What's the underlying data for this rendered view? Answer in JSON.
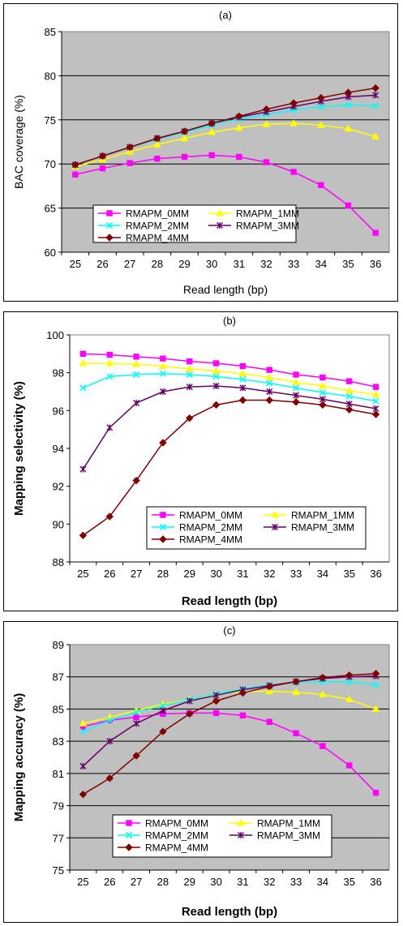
{
  "chart_data": [
    {
      "type": "line",
      "title": "(a)",
      "xlabel": "Read length (bp)",
      "ylabel": "BAC coverage (%)",
      "categories": [
        "25",
        "26",
        "27",
        "28",
        "29",
        "30",
        "31",
        "32",
        "33",
        "34",
        "35",
        "36"
      ],
      "ylim": [
        60,
        85
      ],
      "yticks": [
        "60",
        "65",
        "70",
        "75",
        "80",
        "85"
      ],
      "grid": true,
      "legend": "bottom-left",
      "series": [
        {
          "name": "RMAPM_0MM",
          "color": "#ff00ff",
          "marker": "square",
          "values": [
            68.8,
            69.5,
            70.1,
            70.6,
            70.8,
            71.0,
            70.8,
            70.2,
            69.1,
            67.6,
            65.3,
            62.2
          ]
        },
        {
          "name": "RMAPM_1MM",
          "color": "#ffff00",
          "marker": "triangle",
          "values": [
            69.7,
            70.5,
            71.4,
            72.2,
            72.9,
            73.6,
            74.1,
            74.5,
            74.6,
            74.4,
            74.0,
            73.1
          ]
        },
        {
          "name": "RMAPM_2MM",
          "color": "#00ffff",
          "marker": "x",
          "values": [
            69.9,
            70.9,
            71.9,
            72.8,
            73.6,
            74.4,
            75.1,
            75.6,
            76.1,
            76.5,
            76.7,
            76.6
          ]
        },
        {
          "name": "RMAPM_3MM",
          "color": "#660066",
          "marker": "star",
          "values": [
            69.9,
            70.9,
            71.9,
            72.9,
            73.7,
            74.6,
            75.3,
            75.9,
            76.5,
            77.1,
            77.6,
            77.8
          ]
        },
        {
          "name": "RMAPM_4MM",
          "color": "#800000",
          "marker": "diamond",
          "values": [
            69.9,
            70.9,
            71.9,
            72.9,
            73.7,
            74.6,
            75.4,
            76.2,
            76.9,
            77.5,
            78.1,
            78.6
          ]
        }
      ]
    },
    {
      "type": "line",
      "title": "(b)",
      "xlabel": "Read length (bp)",
      "ylabel": "Mapping selectivity (%)",
      "categories": [
        "25",
        "26",
        "27",
        "28",
        "29",
        "30",
        "31",
        "32",
        "33",
        "34",
        "35",
        "36"
      ],
      "ylim": [
        88,
        100
      ],
      "yticks": [
        "88",
        "90",
        "92",
        "94",
        "96",
        "98",
        "100"
      ],
      "grid": false,
      "legend": "bottom-right",
      "series": [
        {
          "name": "RMAPM_0MM",
          "color": "#ff00ff",
          "marker": "square",
          "values": [
            99.0,
            98.95,
            98.85,
            98.75,
            98.6,
            98.5,
            98.35,
            98.15,
            97.9,
            97.75,
            97.55,
            97.25
          ]
        },
        {
          "name": "RMAPM_1MM",
          "color": "#ffff00",
          "marker": "triangle",
          "values": [
            98.5,
            98.5,
            98.45,
            98.35,
            98.2,
            98.1,
            97.95,
            97.75,
            97.5,
            97.3,
            97.05,
            96.85
          ]
        },
        {
          "name": "RMAPM_2MM",
          "color": "#00ffff",
          "marker": "x",
          "values": [
            97.2,
            97.8,
            97.9,
            97.95,
            97.9,
            97.8,
            97.65,
            97.45,
            97.2,
            96.95,
            96.75,
            96.5
          ]
        },
        {
          "name": "RMAPM_3MM",
          "color": "#660066",
          "marker": "star",
          "values": [
            92.9,
            95.1,
            96.4,
            97.0,
            97.25,
            97.3,
            97.2,
            97.0,
            96.8,
            96.6,
            96.35,
            96.1
          ]
        },
        {
          "name": "RMAPM_4MM",
          "color": "#800000",
          "marker": "diamond",
          "values": [
            89.4,
            90.4,
            92.3,
            94.3,
            95.6,
            96.3,
            96.55,
            96.55,
            96.45,
            96.3,
            96.05,
            95.8
          ]
        }
      ]
    },
    {
      "type": "line",
      "title": "(c)",
      "xlabel": "Read length (bp)",
      "ylabel": "Mapping accuracy (%)",
      "categories": [
        "25",
        "26",
        "27",
        "28",
        "29",
        "30",
        "31",
        "32",
        "33",
        "34",
        "35",
        "36"
      ],
      "ylim": [
        75,
        89
      ],
      "yticks": [
        "75",
        "77",
        "79",
        "81",
        "83",
        "85",
        "87",
        "89"
      ],
      "grid": true,
      "legend": "bottom-center",
      "series": [
        {
          "name": "RMAPM_0MM",
          "color": "#ff00ff",
          "marker": "square",
          "values": [
            83.9,
            84.3,
            84.5,
            84.7,
            84.75,
            84.75,
            84.6,
            84.2,
            83.5,
            82.7,
            81.5,
            79.8
          ]
        },
        {
          "name": "RMAPM_1MM",
          "color": "#ffff00",
          "marker": "triangle",
          "values": [
            84.1,
            84.5,
            84.9,
            85.3,
            85.6,
            85.9,
            86.1,
            86.1,
            86.05,
            85.9,
            85.6,
            85.0
          ]
        },
        {
          "name": "RMAPM_2MM",
          "color": "#00ffff",
          "marker": "x",
          "values": [
            83.6,
            84.3,
            84.8,
            85.2,
            85.6,
            85.95,
            86.25,
            86.5,
            86.65,
            86.7,
            86.7,
            86.5
          ]
        },
        {
          "name": "RMAPM_3MM",
          "color": "#660066",
          "marker": "star",
          "values": [
            81.45,
            83.0,
            84.1,
            84.9,
            85.5,
            85.85,
            86.2,
            86.45,
            86.7,
            86.9,
            87.0,
            87.05
          ]
        },
        {
          "name": "RMAPM_4MM",
          "color": "#800000",
          "marker": "diamond",
          "values": [
            79.7,
            80.7,
            82.1,
            83.6,
            84.7,
            85.5,
            86.0,
            86.4,
            86.7,
            86.95,
            87.1,
            87.2
          ]
        }
      ]
    }
  ]
}
